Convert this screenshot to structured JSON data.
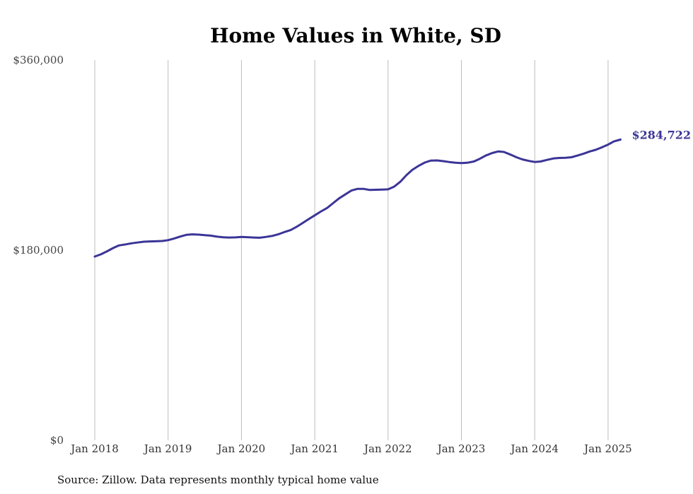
{
  "chart_data": {
    "type": "line",
    "title": "Home Values in White, SD",
    "xlabel": "",
    "ylabel": "",
    "source": "Source: Zillow. Data represents monthly typical home value",
    "y_ticks": [
      "$0",
      "$180,000",
      "$360,000"
    ],
    "y_tick_values": [
      0,
      180000,
      360000
    ],
    "ylim": [
      0,
      360000
    ],
    "x_ticks": [
      "Jan 2018",
      "Jan 2019",
      "Jan 2020",
      "Jan 2021",
      "Jan 2022",
      "Jan 2023",
      "Jan 2024",
      "Jan 2025"
    ],
    "grid": "vertical at x ticks",
    "end_label": "$284,722",
    "line_color": "#3b3597",
    "series": [
      {
        "values": [
          [
            2018.0,
            174000
          ],
          [
            2018.08,
            176000
          ],
          [
            2018.17,
            179000
          ],
          [
            2018.25,
            182000
          ],
          [
            2018.33,
            184500
          ],
          [
            2018.42,
            185500
          ],
          [
            2018.5,
            186500
          ],
          [
            2018.58,
            187200
          ],
          [
            2018.67,
            188000
          ],
          [
            2018.75,
            188300
          ],
          [
            2018.83,
            188400
          ],
          [
            2018.92,
            188700
          ],
          [
            2019.0,
            189500
          ],
          [
            2019.08,
            191000
          ],
          [
            2019.17,
            193000
          ],
          [
            2019.25,
            194500
          ],
          [
            2019.33,
            195000
          ],
          [
            2019.42,
            194700
          ],
          [
            2019.5,
            194200
          ],
          [
            2019.58,
            193800
          ],
          [
            2019.67,
            192800
          ],
          [
            2019.75,
            192200
          ],
          [
            2019.83,
            192000
          ],
          [
            2019.92,
            192100
          ],
          [
            2020.0,
            192600
          ],
          [
            2020.08,
            192300
          ],
          [
            2020.17,
            192000
          ],
          [
            2020.25,
            191800
          ],
          [
            2020.33,
            192500
          ],
          [
            2020.42,
            193500
          ],
          [
            2020.5,
            195000
          ],
          [
            2020.58,
            197000
          ],
          [
            2020.67,
            199000
          ],
          [
            2020.75,
            202000
          ],
          [
            2020.83,
            205500
          ],
          [
            2020.92,
            209500
          ],
          [
            2021.0,
            213000
          ],
          [
            2021.08,
            216500
          ],
          [
            2021.17,
            220000
          ],
          [
            2021.25,
            224500
          ],
          [
            2021.33,
            229000
          ],
          [
            2021.42,
            233000
          ],
          [
            2021.5,
            236500
          ],
          [
            2021.58,
            238000
          ],
          [
            2021.67,
            238000
          ],
          [
            2021.75,
            237000
          ],
          [
            2021.83,
            237200
          ],
          [
            2021.92,
            237400
          ],
          [
            2022.0,
            237600
          ],
          [
            2022.08,
            240000
          ],
          [
            2022.17,
            245000
          ],
          [
            2022.25,
            251000
          ],
          [
            2022.33,
            256000
          ],
          [
            2022.42,
            260000
          ],
          [
            2022.5,
            263000
          ],
          [
            2022.58,
            264800
          ],
          [
            2022.67,
            265000
          ],
          [
            2022.75,
            264300
          ],
          [
            2022.83,
            263500
          ],
          [
            2022.92,
            262800
          ],
          [
            2023.0,
            262500
          ],
          [
            2023.08,
            262800
          ],
          [
            2023.17,
            264000
          ],
          [
            2023.25,
            266500
          ],
          [
            2023.33,
            269500
          ],
          [
            2023.42,
            272000
          ],
          [
            2023.5,
            273500
          ],
          [
            2023.58,
            273000
          ],
          [
            2023.67,
            270500
          ],
          [
            2023.75,
            268000
          ],
          [
            2023.83,
            266000
          ],
          [
            2023.92,
            264500
          ],
          [
            2024.0,
            263500
          ],
          [
            2024.08,
            264000
          ],
          [
            2024.17,
            265500
          ],
          [
            2024.25,
            266800
          ],
          [
            2024.33,
            267300
          ],
          [
            2024.42,
            267500
          ],
          [
            2024.5,
            268000
          ],
          [
            2024.58,
            269500
          ],
          [
            2024.67,
            271500
          ],
          [
            2024.75,
            273500
          ],
          [
            2024.83,
            275000
          ],
          [
            2024.92,
            277500
          ],
          [
            2025.0,
            280000
          ],
          [
            2025.08,
            283000
          ],
          [
            2025.17,
            284722
          ]
        ]
      }
    ]
  }
}
